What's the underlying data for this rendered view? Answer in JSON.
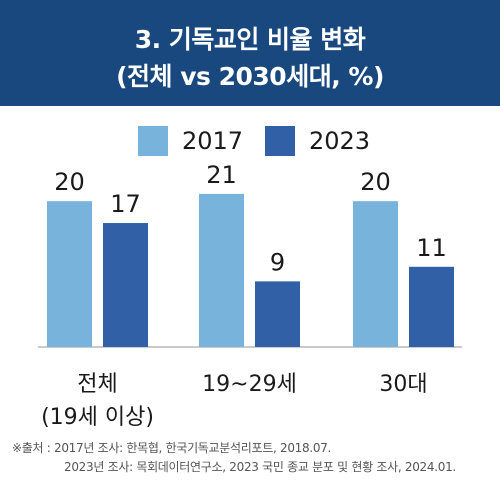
{
  "header": {
    "title_line1": "3. 기독교인 비율 변화",
    "title_line2": "(전체 vs 2030세대, %)"
  },
  "source": {
    "line1": "※출처 : 2017년 조사: 한목협, 한국기독교분석리포트, 2018.07.",
    "line2": "2023년 조사: 목회데이터연구소, 2023 국민 종교 분포 및 현황 조사, 2024.01."
  },
  "chart_data": {
    "type": "bar",
    "title": "3. 기독교인 비율 변화 (전체 vs 2030세대, %)",
    "categories": [
      "전체 (19세 이상)",
      "19~29세",
      "30대"
    ],
    "category_lines": [
      [
        "전체",
        "(19세 이상)"
      ],
      [
        "19~29세"
      ],
      [
        "30대"
      ]
    ],
    "series": [
      {
        "name": "2017",
        "values": [
          20,
          21,
          20
        ],
        "color": "#78b3dc"
      },
      {
        "name": "2023",
        "values": [
          17,
          9,
          11
        ],
        "color": "#3160a6"
      }
    ],
    "ylim": [
      0,
      24
    ],
    "legend": "top-center",
    "grid": false
  }
}
